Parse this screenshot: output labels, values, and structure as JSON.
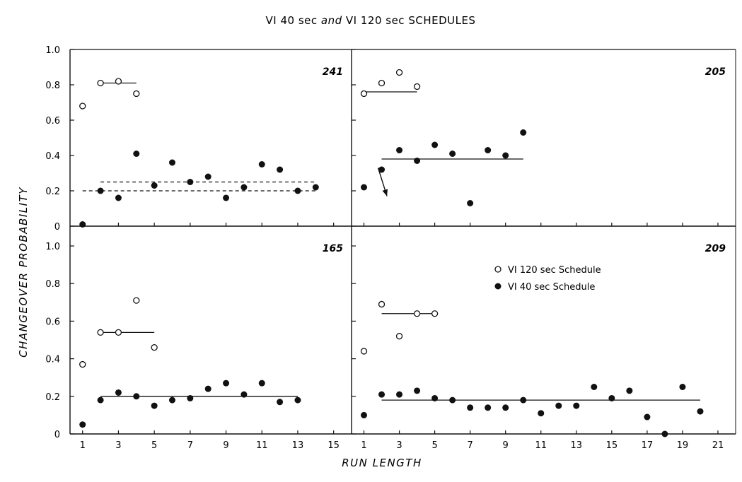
{
  "chart_data": {
    "type": "scatter",
    "title_parts": [
      "VI 40 sec ",
      "and",
      " VI 120 sec SCHEDULES"
    ],
    "xlabel": "RUN LENGTH",
    "ylabel": "CHANGEOVER PROBABILITY",
    "ylim": [
      0,
      1.0
    ],
    "y_ticks": [
      "0",
      "0.2",
      "0.4",
      "0.6",
      "0.8",
      "1.0"
    ],
    "legend": [
      {
        "marker": "open-circle",
        "label": "VI 120 sec Schedule"
      },
      {
        "marker": "filled-circle",
        "label": "VI 40 sec Schedule"
      }
    ],
    "panels": [
      {
        "id": "241",
        "xlim": [
          0.3,
          16
        ],
        "x_ticks": [
          1,
          3,
          5,
          7,
          9,
          11,
          13,
          15
        ],
        "x_tick_labels": [],
        "vi120": [
          {
            "x": 1,
            "y": 0.68
          },
          {
            "x": 2,
            "y": 0.81
          },
          {
            "x": 3,
            "y": 0.82
          },
          {
            "x": 4,
            "y": 0.75
          }
        ],
        "vi40": [
          {
            "x": 1,
            "y": 0.01
          },
          {
            "x": 2,
            "y": 0.2
          },
          {
            "x": 3,
            "y": 0.16
          },
          {
            "x": 4,
            "y": 0.41
          },
          {
            "x": 5,
            "y": 0.23
          },
          {
            "x": 6,
            "y": 0.36
          },
          {
            "x": 7,
            "y": 0.25
          },
          {
            "x": 8,
            "y": 0.28
          },
          {
            "x": 9,
            "y": 0.16
          },
          {
            "x": 10,
            "y": 0.22
          },
          {
            "x": 11,
            "y": 0.35
          },
          {
            "x": 12,
            "y": 0.32
          },
          {
            "x": 13,
            "y": 0.2
          },
          {
            "x": 14,
            "y": 0.22
          }
        ],
        "lines": [
          {
            "x1": 2,
            "x2": 4,
            "y": 0.81,
            "style": "solid"
          },
          {
            "x1": 2,
            "x2": 14,
            "y": 0.25,
            "style": "dashed"
          },
          {
            "x1": 1,
            "x2": 14,
            "y": 0.2,
            "style": "dashed"
          }
        ],
        "arrow": null
      },
      {
        "id": "205",
        "xlim": [
          0.3,
          22
        ],
        "x_ticks": [
          1,
          3,
          5,
          7,
          9,
          11,
          13,
          15,
          17,
          19,
          21
        ],
        "x_tick_labels": [],
        "vi120": [
          {
            "x": 1,
            "y": 0.75
          },
          {
            "x": 2,
            "y": 0.81
          },
          {
            "x": 3,
            "y": 0.87
          },
          {
            "x": 4,
            "y": 0.79
          }
        ],
        "vi40": [
          {
            "x": 1,
            "y": 0.22
          },
          {
            "x": 2,
            "y": 0.32
          },
          {
            "x": 3,
            "y": 0.43
          },
          {
            "x": 4,
            "y": 0.37
          },
          {
            "x": 5,
            "y": 0.46
          },
          {
            "x": 6,
            "y": 0.41
          },
          {
            "x": 7,
            "y": 0.13
          },
          {
            "x": 8,
            "y": 0.43
          },
          {
            "x": 9,
            "y": 0.4
          },
          {
            "x": 10,
            "y": 0.53
          }
        ],
        "lines": [
          {
            "x1": 1,
            "x2": 4,
            "y": 0.76,
            "style": "solid"
          },
          {
            "x1": 2,
            "x2": 10,
            "y": 0.38,
            "style": "solid"
          }
        ],
        "arrow": {
          "x1": 1.8,
          "y1": 0.33,
          "x2": 2.3,
          "y2": 0.17
        }
      },
      {
        "id": "165",
        "xlim": [
          0.3,
          16
        ],
        "x_ticks": [
          1,
          3,
          5,
          7,
          9,
          11,
          13,
          15
        ],
        "x_tick_labels": [
          "1",
          "3",
          "5",
          "7",
          "9",
          "11",
          "13",
          "15"
        ],
        "vi120": [
          {
            "x": 1,
            "y": 0.37
          },
          {
            "x": 2,
            "y": 0.54
          },
          {
            "x": 3,
            "y": 0.54
          },
          {
            "x": 4,
            "y": 0.71
          },
          {
            "x": 5,
            "y": 0.46
          }
        ],
        "vi40": [
          {
            "x": 1,
            "y": 0.05
          },
          {
            "x": 2,
            "y": 0.18
          },
          {
            "x": 3,
            "y": 0.22
          },
          {
            "x": 4,
            "y": 0.2
          },
          {
            "x": 5,
            "y": 0.15
          },
          {
            "x": 6,
            "y": 0.18
          },
          {
            "x": 7,
            "y": 0.19
          },
          {
            "x": 8,
            "y": 0.24
          },
          {
            "x": 9,
            "y": 0.27
          },
          {
            "x": 10,
            "y": 0.21
          },
          {
            "x": 11,
            "y": 0.27
          },
          {
            "x": 12,
            "y": 0.17
          },
          {
            "x": 13,
            "y": 0.18
          }
        ],
        "lines": [
          {
            "x1": 2,
            "x2": 5,
            "y": 0.54,
            "style": "solid"
          },
          {
            "x1": 2,
            "x2": 13,
            "y": 0.2,
            "style": "solid"
          }
        ],
        "arrow": null
      },
      {
        "id": "209",
        "xlim": [
          0.3,
          22
        ],
        "x_ticks": [
          1,
          3,
          5,
          7,
          9,
          11,
          13,
          15,
          17,
          19,
          21
        ],
        "x_tick_labels": [
          "1",
          "3",
          "5",
          "7",
          "9",
          "11",
          "13",
          "15",
          "17",
          "19",
          "21"
        ],
        "vi120": [
          {
            "x": 1,
            "y": 0.44
          },
          {
            "x": 2,
            "y": 0.69
          },
          {
            "x": 3,
            "y": 0.52
          },
          {
            "x": 4,
            "y": 0.64
          },
          {
            "x": 5,
            "y": 0.64
          }
        ],
        "vi40": [
          {
            "x": 1,
            "y": 0.1
          },
          {
            "x": 2,
            "y": 0.21
          },
          {
            "x": 3,
            "y": 0.21
          },
          {
            "x": 4,
            "y": 0.23
          },
          {
            "x": 5,
            "y": 0.19
          },
          {
            "x": 6,
            "y": 0.18
          },
          {
            "x": 7,
            "y": 0.14
          },
          {
            "x": 8,
            "y": 0.14
          },
          {
            "x": 9,
            "y": 0.14
          },
          {
            "x": 10,
            "y": 0.18
          },
          {
            "x": 11,
            "y": 0.11
          },
          {
            "x": 12,
            "y": 0.15
          },
          {
            "x": 13,
            "y": 0.15
          },
          {
            "x": 14,
            "y": 0.25
          },
          {
            "x": 15,
            "y": 0.19
          },
          {
            "x": 16,
            "y": 0.23
          },
          {
            "x": 17,
            "y": 0.09
          },
          {
            "x": 18,
            "y": 0.0
          },
          {
            "x": 19,
            "y": 0.25
          },
          {
            "x": 20,
            "y": 0.12
          }
        ],
        "lines": [
          {
            "x1": 2,
            "x2": 5,
            "y": 0.64,
            "style": "solid"
          },
          {
            "x1": 2,
            "x2": 20,
            "y": 0.18,
            "style": "solid"
          }
        ],
        "arrow": null
      }
    ]
  }
}
